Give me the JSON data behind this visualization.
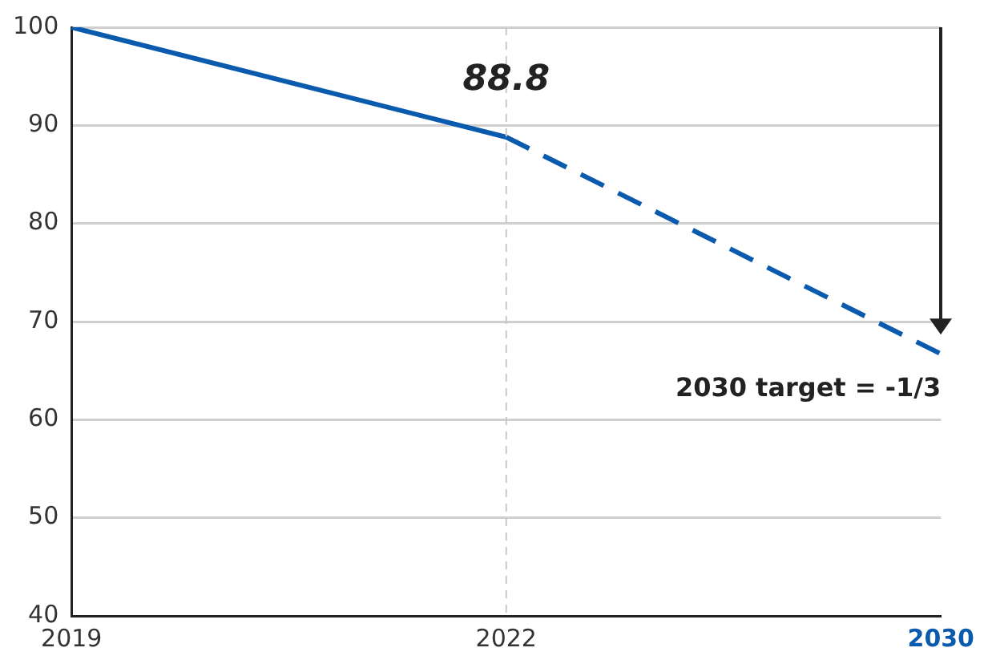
{
  "chart_data": {
    "type": "line",
    "categories": [
      "2019",
      "2022",
      "2030"
    ],
    "series": [
      {
        "color": "#0a5aad",
        "values": [
          100,
          88.8,
          null
        ],
        "line_style": "solid"
      },
      {
        "color": "#0a5aad",
        "values": [
          null,
          88.8,
          66.7
        ],
        "line_style": "dashed"
      }
    ],
    "ylim": [
      40,
      100
    ],
    "yticks": [
      40,
      50,
      60,
      70,
      80,
      90,
      100
    ],
    "grid": "y",
    "legend": false,
    "marker": "none",
    "ref_lines": [
      {
        "axis": "x",
        "value": "2022",
        "color": "#c8c8c8",
        "line_style": "dashed"
      }
    ],
    "annotations": [
      {
        "text": "88.8",
        "x": "2022",
        "y": 88.8
      },
      {
        "text": "2030 target = -1/3",
        "x": "2030",
        "y": 66.7
      }
    ]
  }
}
